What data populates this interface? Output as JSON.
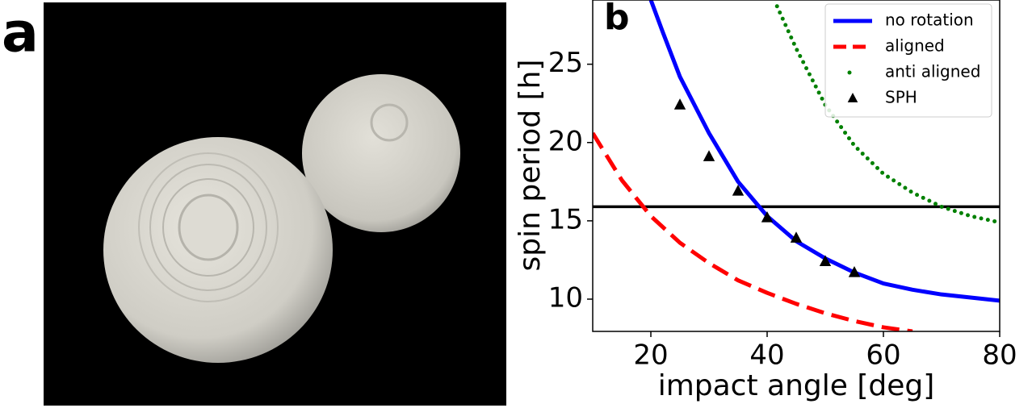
{
  "image_panel": {
    "label": "a"
  },
  "chart_data": {
    "type": "line",
    "panel_label": "b",
    "x_label": "impact angle [deg]",
    "y_label": "spin period [h]",
    "xlim": [
      10,
      80
    ],
    "xticks": [
      20,
      40,
      60,
      80
    ],
    "ylim": [
      7.94,
      29.1
    ],
    "yticks": [
      10,
      15,
      20,
      25
    ],
    "hline": 15.9,
    "hline_color": "#000000",
    "legend": "upper right",
    "series": [
      {
        "name": "no rotation",
        "color": "#0000ff",
        "style": "solid",
        "x": [
          20,
          22,
          25,
          30,
          35,
          40,
          45,
          50,
          55,
          60,
          65,
          70,
          75,
          80
        ],
        "values": [
          29.1,
          27.1,
          24.2,
          20.6,
          17.5,
          15.3,
          13.7,
          12.6,
          11.7,
          11.0,
          10.6,
          10.3,
          10.1,
          9.9
        ]
      },
      {
        "name": "aligned",
        "color": "#ff0000",
        "style": "dashed",
        "x": [
          10,
          15,
          20,
          25,
          30,
          35,
          40,
          45,
          50,
          55,
          60,
          65
        ],
        "values": [
          20.6,
          17.6,
          15.3,
          13.6,
          12.3,
          11.2,
          10.4,
          9.7,
          9.1,
          8.6,
          8.2,
          7.94
        ]
      },
      {
        "name": "anti aligned",
        "color": "#008000",
        "style": "dotted",
        "x": [
          41.7,
          45,
          50,
          55,
          60,
          65,
          70,
          75,
          80
        ],
        "values": [
          28.7,
          26.0,
          22.4,
          19.8,
          18.0,
          16.8,
          15.9,
          15.3,
          14.9
        ]
      },
      {
        "name": "SPH",
        "color": "#000000",
        "style": "markers",
        "x": [
          25,
          30,
          35,
          40,
          45,
          50,
          55
        ],
        "values": [
          22.4,
          19.1,
          16.9,
          15.2,
          13.9,
          12.4,
          11.7
        ]
      }
    ]
  }
}
